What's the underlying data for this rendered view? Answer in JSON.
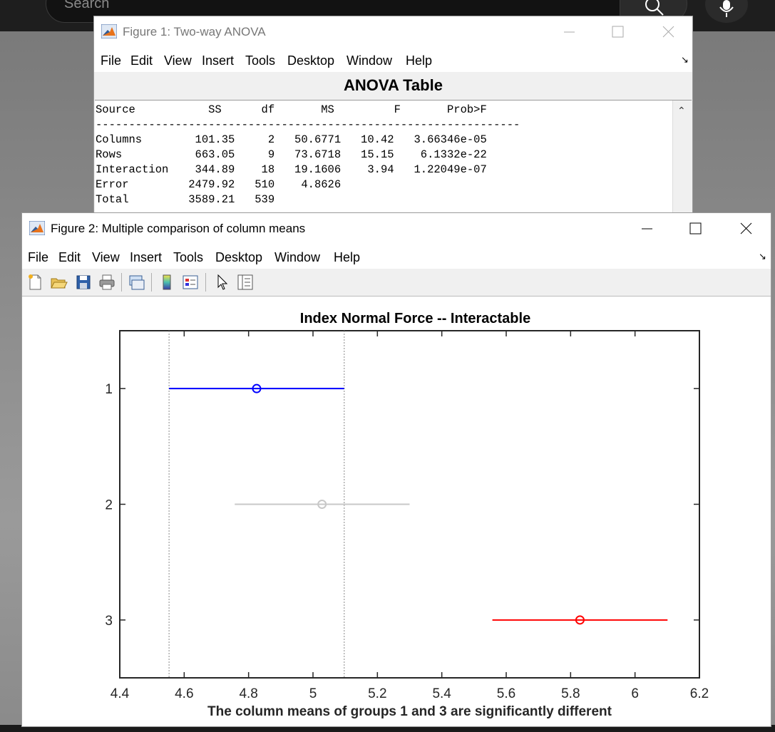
{
  "desktop": {
    "search_placeholder": "Search"
  },
  "figure1": {
    "title": "Figure 1: Two-way ANOVA",
    "menu": [
      "File",
      "Edit",
      "View",
      "Insert",
      "Tools",
      "Desktop",
      "Window",
      "Help"
    ],
    "heading": "ANOVA Table",
    "table_text": "Source           SS      df       MS         F       Prob>F\n----------------------------------------------------------------\nColumns        101.35     2   50.6771   10.42   3.66346e-05\nRows           663.05     9   73.6718   15.15    6.1332e-22\nInteraction    344.89    18   19.1606    3.94   1.22049e-07\nError         2479.92   510    4.8626\nTotal         3589.21   539"
  },
  "figure2": {
    "title": "Figure 2: Multiple comparison of column means",
    "menu": [
      "File",
      "Edit",
      "View",
      "Insert",
      "Tools",
      "Desktop",
      "Window",
      "Help"
    ],
    "toolbar_icons": [
      "new-figure-icon",
      "open-file-icon",
      "save-icon",
      "print-icon",
      "link-plot-icon",
      "colorbar-icon",
      "legend-icon",
      "edit-plot-arrow-icon",
      "property-inspector-icon"
    ]
  },
  "chart_data": {
    "type": "scatter",
    "title": "Index Normal Force -- Interactable",
    "xlabel": "The column means of groups 1 and 3 are significantly different",
    "ylabel": "",
    "xlim": [
      4.4,
      6.2
    ],
    "ylim": [
      0.5,
      3.5
    ],
    "x_ticks": [
      "4.4",
      "4.6",
      "4.8",
      "5",
      "5.2",
      "5.4",
      "5.6",
      "5.8",
      "6",
      "6.2"
    ],
    "x_tick_values": [
      4.4,
      4.6,
      4.8,
      5.0,
      5.2,
      5.4,
      5.6,
      5.8,
      6.0,
      6.2
    ],
    "y_ticks": [
      "1",
      "2",
      "3"
    ],
    "y_tick_values": [
      1,
      2,
      3
    ],
    "series": [
      {
        "group": 1,
        "mean": 4.825,
        "lower": 4.553,
        "upper": 5.097,
        "color": "#0000ff"
      },
      {
        "group": 2,
        "mean": 5.028,
        "lower": 4.757,
        "upper": 5.3,
        "color": "#c8c8c8"
      },
      {
        "group": 3,
        "mean": 5.829,
        "lower": 5.557,
        "upper": 6.101,
        "color": "#ff0000"
      }
    ],
    "reference_lines": [
      4.553,
      5.097
    ],
    "grid": false
  }
}
